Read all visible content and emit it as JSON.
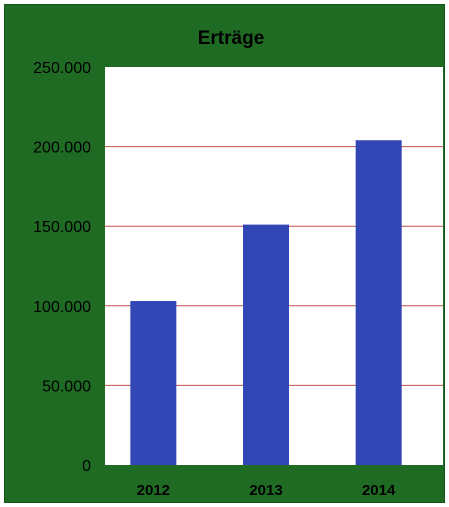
{
  "chart_data": {
    "type": "bar",
    "title": "Erträge",
    "xlabel": "",
    "ylabel": "",
    "categories": [
      "2012",
      "2013",
      "2014"
    ],
    "values": [
      103000,
      151000,
      204000
    ],
    "ylim": [
      0,
      250000
    ],
    "yticks": [
      0,
      50000,
      100000,
      150000,
      200000,
      250000
    ],
    "ytick_labels": [
      "0",
      "50.000",
      "100.000",
      "150.000",
      "200.000",
      "250.000"
    ],
    "grid": true,
    "legend": "none",
    "colors": {
      "background": "#1f6b24",
      "plot_area": "#ffffff",
      "bar": "#3346b5",
      "gridline": "#c0504d"
    }
  }
}
